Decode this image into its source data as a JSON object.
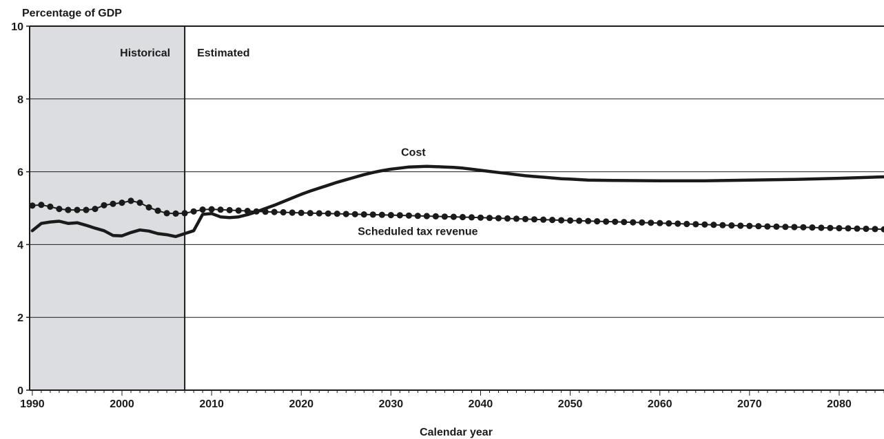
{
  "chart_data": {
    "type": "line",
    "title": "",
    "ylabel": "Percentage of GDP",
    "xlabel": "Calendar year",
    "xlim": [
      1989.7,
      2085
    ],
    "ylim": [
      0,
      10
    ],
    "y_ticks": [
      0,
      2,
      4,
      6,
      8,
      10
    ],
    "x_ticks": [
      1990,
      2000,
      2010,
      2020,
      2030,
      2040,
      2050,
      2060,
      2070,
      2080
    ],
    "grid": "horizontal",
    "regions": [
      {
        "label": "Historical",
        "x_start": 1989.7,
        "x_end": 2007,
        "shaded": true
      },
      {
        "label": "Estimated",
        "x_start": 2007,
        "x_end": 2085,
        "shaded": false
      }
    ],
    "series": [
      {
        "name": "Cost",
        "style": "solid",
        "points": [
          [
            1990,
            4.38
          ],
          [
            1991,
            4.58
          ],
          [
            1992,
            4.62
          ],
          [
            1993,
            4.64
          ],
          [
            1994,
            4.58
          ],
          [
            1995,
            4.6
          ],
          [
            1996,
            4.53
          ],
          [
            1997,
            4.45
          ],
          [
            1998,
            4.38
          ],
          [
            1999,
            4.25
          ],
          [
            2000,
            4.24
          ],
          [
            2001,
            4.33
          ],
          [
            2002,
            4.4
          ],
          [
            2003,
            4.37
          ],
          [
            2004,
            4.3
          ],
          [
            2005,
            4.27
          ],
          [
            2006,
            4.22
          ],
          [
            2007,
            4.3
          ],
          [
            2008,
            4.38
          ],
          [
            2009,
            4.83
          ],
          [
            2010,
            4.85
          ],
          [
            2011,
            4.76
          ],
          [
            2012,
            4.74
          ],
          [
            2013,
            4.76
          ],
          [
            2014,
            4.82
          ],
          [
            2015,
            4.9
          ],
          [
            2016,
            4.99
          ],
          [
            2017,
            5.08
          ],
          [
            2018,
            5.18
          ],
          [
            2019,
            5.28
          ],
          [
            2020,
            5.38
          ],
          [
            2021,
            5.47
          ],
          [
            2022,
            5.55
          ],
          [
            2023,
            5.63
          ],
          [
            2024,
            5.71
          ],
          [
            2025,
            5.78
          ],
          [
            2026,
            5.85
          ],
          [
            2027,
            5.92
          ],
          [
            2028,
            5.98
          ],
          [
            2029,
            6.03
          ],
          [
            2030,
            6.07
          ],
          [
            2031,
            6.1
          ],
          [
            2032,
            6.13
          ],
          [
            2033,
            6.14
          ],
          [
            2034,
            6.15
          ],
          [
            2035,
            6.14
          ],
          [
            2036,
            6.13
          ],
          [
            2037,
            6.12
          ],
          [
            2038,
            6.1
          ],
          [
            2039,
            6.07
          ],
          [
            2040,
            6.04
          ],
          [
            2041,
            6.01
          ],
          [
            2042,
            5.98
          ],
          [
            2043,
            5.95
          ],
          [
            2044,
            5.92
          ],
          [
            2045,
            5.89
          ],
          [
            2046,
            5.87
          ],
          [
            2047,
            5.85
          ],
          [
            2048,
            5.83
          ],
          [
            2049,
            5.81
          ],
          [
            2050,
            5.8
          ],
          [
            2052,
            5.77
          ],
          [
            2055,
            5.76
          ],
          [
            2060,
            5.75
          ],
          [
            2065,
            5.75
          ],
          [
            2070,
            5.77
          ],
          [
            2075,
            5.79
          ],
          [
            2080,
            5.82
          ],
          [
            2085,
            5.86
          ]
        ]
      },
      {
        "name": "Scheduled tax revenue",
        "style": "dotted",
        "points": [
          [
            1990,
            5.07
          ],
          [
            1991,
            5.09
          ],
          [
            1992,
            5.04
          ],
          [
            1993,
            4.98
          ],
          [
            1994,
            4.95
          ],
          [
            1995,
            4.95
          ],
          [
            1996,
            4.95
          ],
          [
            1997,
            4.98
          ],
          [
            1998,
            5.08
          ],
          [
            1999,
            5.12
          ],
          [
            2000,
            5.15
          ],
          [
            2001,
            5.2
          ],
          [
            2002,
            5.15
          ],
          [
            2003,
            5.02
          ],
          [
            2004,
            4.93
          ],
          [
            2005,
            4.86
          ],
          [
            2006,
            4.85
          ],
          [
            2007,
            4.86
          ],
          [
            2008,
            4.91
          ],
          [
            2009,
            4.96
          ],
          [
            2010,
            4.97
          ],
          [
            2015,
            4.91
          ],
          [
            2020,
            4.87
          ],
          [
            2030,
            4.81
          ],
          [
            2040,
            4.74
          ],
          [
            2050,
            4.66
          ],
          [
            2060,
            4.59
          ],
          [
            2070,
            4.51
          ],
          [
            2080,
            4.45
          ],
          [
            2085,
            4.42
          ]
        ]
      }
    ],
    "annotations": [
      {
        "text": "Cost",
        "x": 2032.5,
        "y": 6.44
      },
      {
        "text": "Scheduled tax revenue",
        "x": 2033,
        "y": 4.26
      }
    ]
  }
}
